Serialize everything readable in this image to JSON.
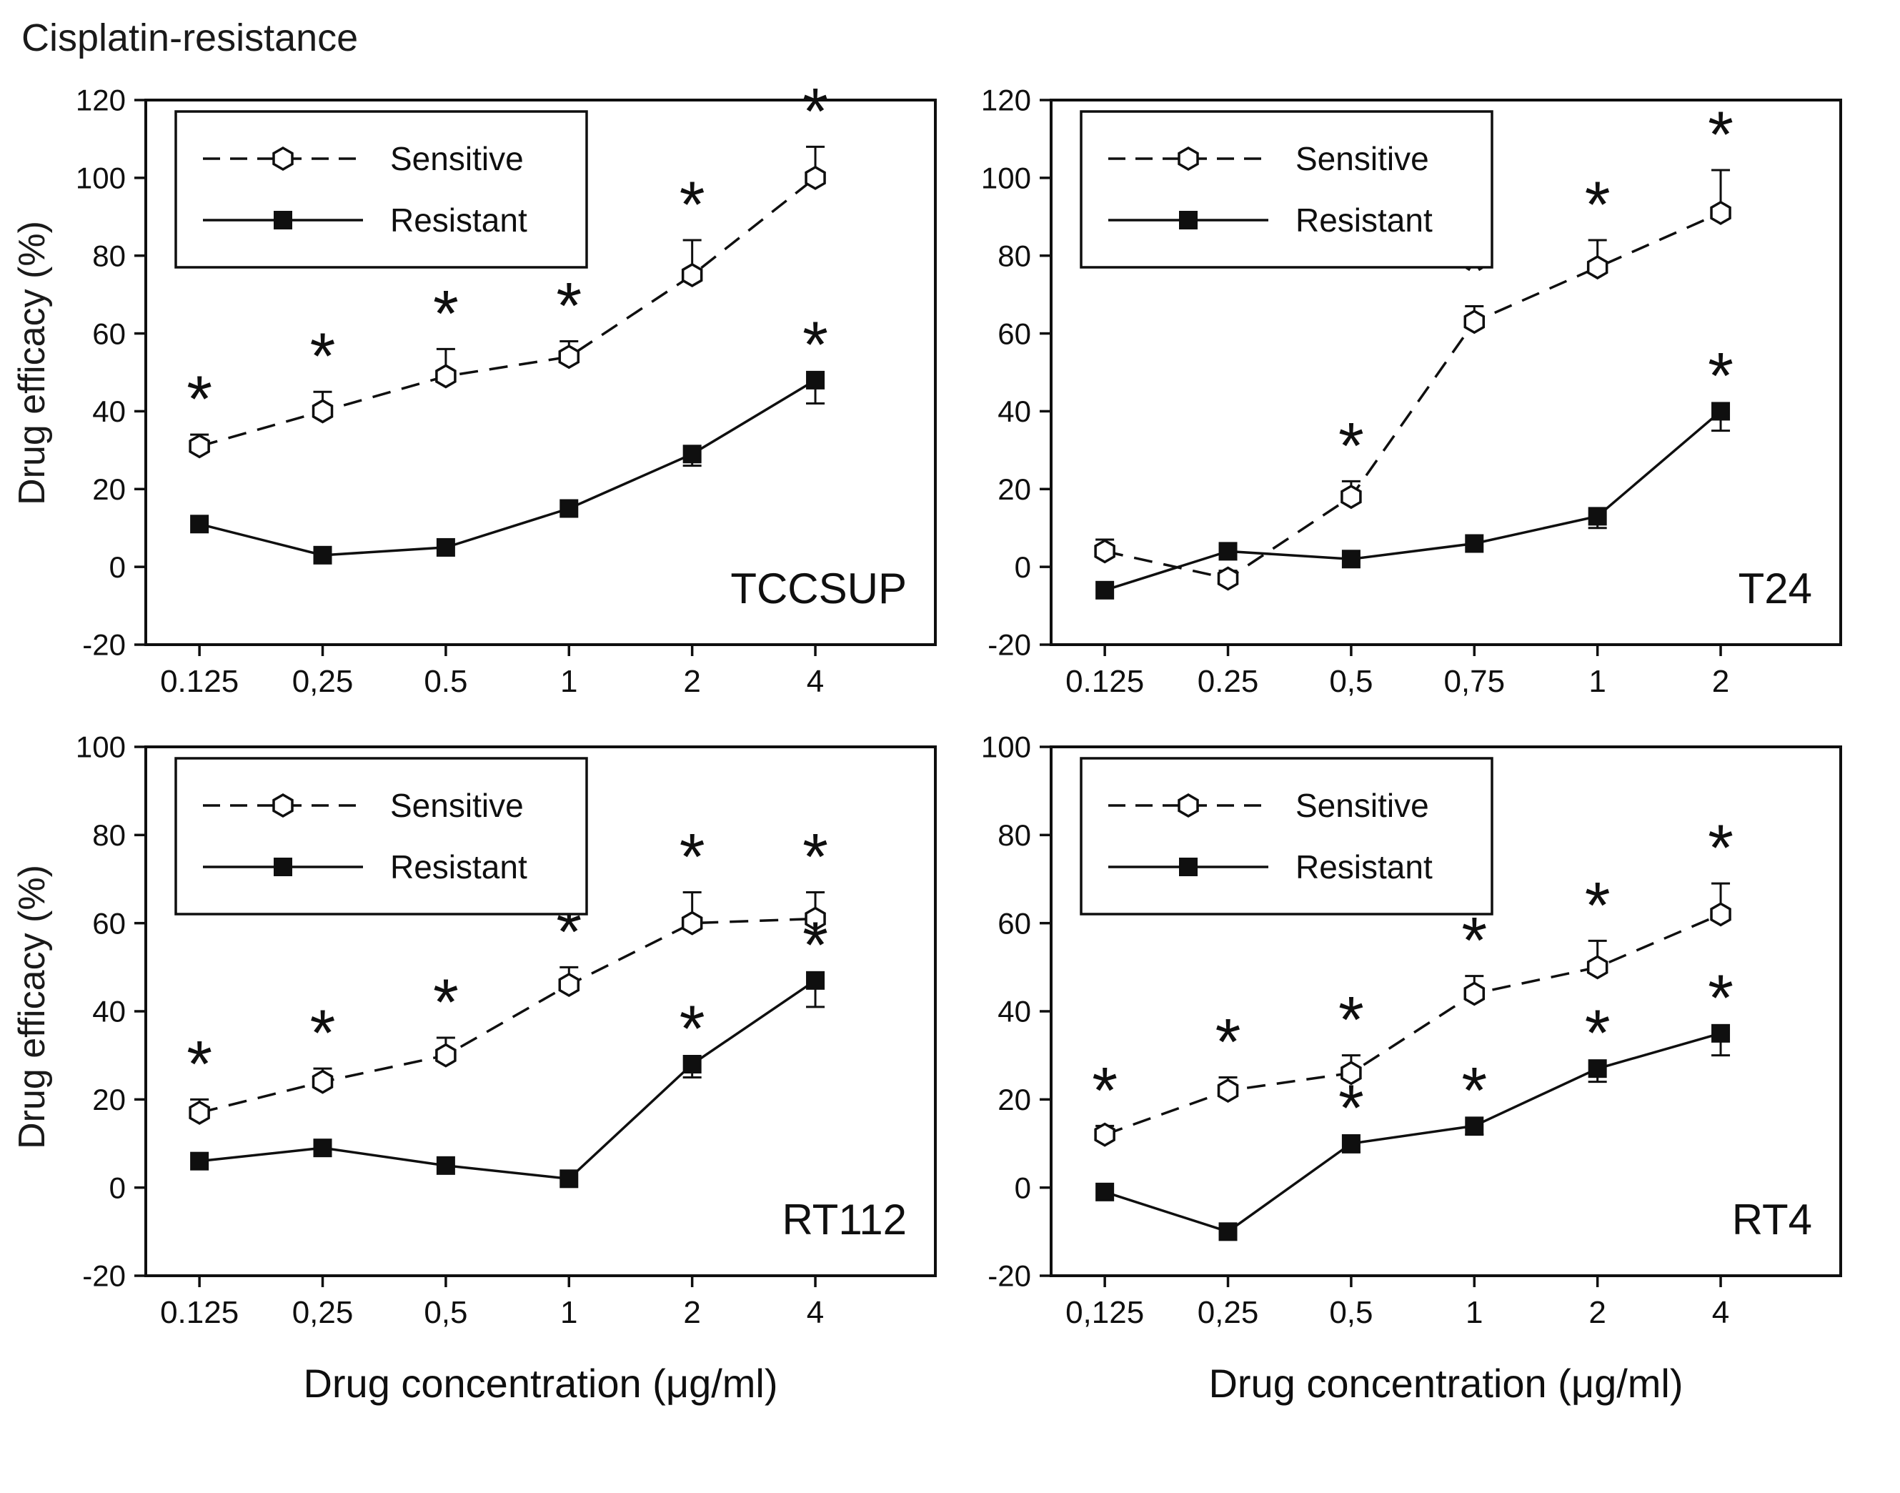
{
  "title": "Cisplatin-resistance",
  "axis": {
    "xlabel": "Drug concentration (μg/ml)",
    "ylabel": "Drug efficacy (%)"
  },
  "colors": {
    "line": "#0f0f0f",
    "background": "#ffffff",
    "marker_fill": "#ffffff"
  },
  "legend": {
    "items": [
      "Sensitive",
      "Resistant"
    ],
    "position": "top-left"
  },
  "significance_symbol": "*",
  "chart_data": [
    {
      "type": "line",
      "panel_label": "TCCSUP",
      "categories": [
        "0.125",
        "0,25",
        "0.5",
        "1",
        "2",
        "4"
      ],
      "xlabel": "",
      "ylim": [
        -20,
        120
      ],
      "yticks": [
        120,
        100,
        80,
        60,
        40,
        20,
        0,
        -20
      ],
      "grid": false,
      "series": [
        {
          "name": "Sensitive",
          "line": "dashed",
          "marker": "open-hexagon",
          "error_dir": "up",
          "values": [
            31,
            40,
            49,
            54,
            75,
            100
          ],
          "errors": [
            3,
            5,
            7,
            4,
            9,
            8
          ],
          "significant": [
            true,
            true,
            true,
            true,
            true,
            true
          ]
        },
        {
          "name": "Resistant",
          "line": "solid",
          "marker": "filled-square",
          "error_dir": "down",
          "values": [
            11,
            3,
            5,
            15,
            29,
            48
          ],
          "errors": [
            0,
            0,
            0,
            0,
            3,
            6
          ],
          "significant": [
            false,
            false,
            false,
            false,
            false,
            true
          ]
        }
      ]
    },
    {
      "type": "line",
      "panel_label": "T24",
      "categories": [
        "0.125",
        "0.25",
        "0,5",
        "0,75",
        "1",
        "2"
      ],
      "xlabel": "",
      "ylim": [
        -20,
        120
      ],
      "yticks": [
        120,
        100,
        80,
        60,
        40,
        20,
        0,
        -20
      ],
      "grid": false,
      "series": [
        {
          "name": "Sensitive",
          "line": "dashed",
          "marker": "open-hexagon",
          "error_dir": "up",
          "values": [
            4,
            -3,
            18,
            63,
            77,
            91
          ],
          "errors": [
            3,
            2,
            4,
            4,
            7,
            11
          ],
          "significant": [
            false,
            false,
            true,
            true,
            true,
            true
          ]
        },
        {
          "name": "Resistant",
          "line": "solid",
          "marker": "filled-square",
          "error_dir": "down",
          "values": [
            -6,
            4,
            2,
            6,
            13,
            40
          ],
          "errors": [
            0,
            0,
            0,
            0,
            3,
            5
          ],
          "significant": [
            false,
            false,
            false,
            false,
            false,
            true
          ]
        }
      ]
    },
    {
      "type": "line",
      "panel_label": "RT112",
      "categories": [
        "0.125",
        "0,25",
        "0,5",
        "1",
        "2",
        "4"
      ],
      "xlabel": "Drug concentration (μg/ml)",
      "ylim": [
        -20,
        100
      ],
      "yticks": [
        100,
        80,
        60,
        40,
        20,
        0,
        -20
      ],
      "grid": false,
      "series": [
        {
          "name": "Sensitive",
          "line": "dashed",
          "marker": "open-hexagon",
          "error_dir": "up",
          "values": [
            17,
            24,
            30,
            46,
            60,
            61
          ],
          "errors": [
            3,
            3,
            4,
            4,
            7,
            6
          ],
          "significant": [
            true,
            true,
            true,
            true,
            true,
            true
          ]
        },
        {
          "name": "Resistant",
          "line": "solid",
          "marker": "filled-square",
          "error_dir": "down",
          "values": [
            6,
            9,
            5,
            2,
            28,
            47
          ],
          "errors": [
            0,
            0,
            0,
            0,
            3,
            6
          ],
          "significant": [
            false,
            false,
            false,
            false,
            true,
            true
          ]
        }
      ]
    },
    {
      "type": "line",
      "panel_label": "RT4",
      "categories": [
        "0,125",
        "0,25",
        "0,5",
        "1",
        "2",
        "4"
      ],
      "xlabel": "Drug concentration (μg/ml)",
      "ylim": [
        -20,
        100
      ],
      "yticks": [
        100,
        80,
        60,
        40,
        20,
        0,
        -20
      ],
      "grid": false,
      "series": [
        {
          "name": "Sensitive",
          "line": "dashed",
          "marker": "open-hexagon",
          "error_dir": "up",
          "values": [
            12,
            22,
            26,
            44,
            50,
            62
          ],
          "errors": [
            2,
            3,
            4,
            4,
            6,
            7
          ],
          "significant": [
            true,
            true,
            true,
            true,
            true,
            true
          ]
        },
        {
          "name": "Resistant",
          "line": "solid",
          "marker": "filled-square",
          "error_dir": "down",
          "values": [
            -1,
            -10,
            10,
            14,
            27,
            35
          ],
          "errors": [
            0,
            0,
            2,
            2,
            3,
            5
          ],
          "significant": [
            false,
            false,
            true,
            true,
            true,
            true
          ]
        }
      ]
    }
  ]
}
